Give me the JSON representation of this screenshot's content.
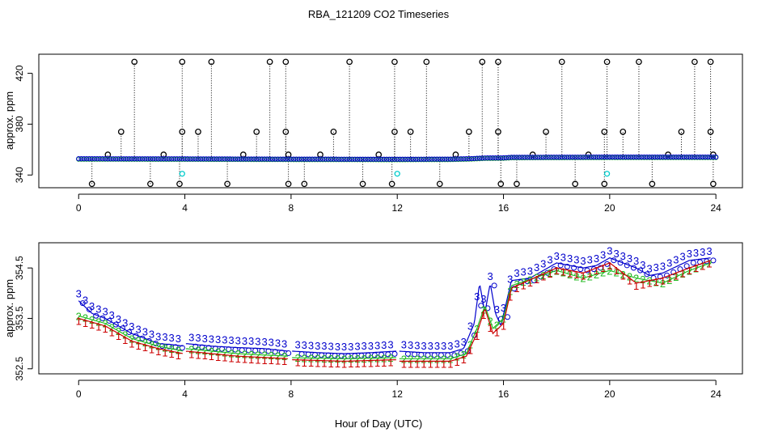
{
  "figure": {
    "title": "RBA_121209  CO2 Timeseries",
    "xlabel": "Hour of Day (UTC)"
  },
  "colors": {
    "open": "#000000",
    "series1": "#cc0000",
    "series2": "#22bb22",
    "series3": "#0000cc",
    "flag": "#00cccc"
  },
  "chart_data": [
    {
      "type": "scatter",
      "panel": "top",
      "title": "RBA_121209  CO2 Timeseries",
      "xlabel": "",
      "ylabel": "approx. ppm",
      "xlim": [
        -1.5,
        25.0
      ],
      "ylim": [
        330,
        435
      ],
      "xticks": [
        0,
        4,
        8,
        12,
        16,
        20,
        24
      ],
      "xtick_labels": [
        "0",
        "4",
        "8",
        "12",
        "16",
        "20",
        "24"
      ],
      "yticks": [
        340,
        380,
        420
      ],
      "ytick_labels": [
        "340",
        "380",
        "420"
      ],
      "baseline": [
        [
          0,
          353.3
        ],
        [
          4,
          353.2
        ],
        [
          8,
          353.0
        ],
        [
          12,
          352.9
        ],
        [
          14,
          353.0
        ],
        [
          14.8,
          353.4
        ],
        [
          15.3,
          353.9
        ],
        [
          16.0,
          354.0
        ],
        [
          16.3,
          354.4
        ],
        [
          20,
          354.6
        ],
        [
          24,
          354.6
        ]
      ],
      "spikes": [
        {
          "x": 0.5,
          "y": 333
        },
        {
          "x": 1.1,
          "y": 356
        },
        {
          "x": 1.6,
          "y": 374
        },
        {
          "x": 2.1,
          "y": 429
        },
        {
          "x": 2.7,
          "y": 333
        },
        {
          "x": 3.2,
          "y": 356
        },
        {
          "x": 3.8,
          "y": 333
        },
        {
          "x": 3.9,
          "y": 374
        },
        {
          "x": 3.9,
          "y": 429
        },
        {
          "x": 4.5,
          "y": 374
        },
        {
          "x": 5.0,
          "y": 429
        },
        {
          "x": 5.6,
          "y": 333
        },
        {
          "x": 6.2,
          "y": 356
        },
        {
          "x": 6.7,
          "y": 374
        },
        {
          "x": 7.2,
          "y": 429
        },
        {
          "x": 7.8,
          "y": 429
        },
        {
          "x": 7.8,
          "y": 374
        },
        {
          "x": 7.9,
          "y": 333
        },
        {
          "x": 7.9,
          "y": 356
        },
        {
          "x": 8.5,
          "y": 333
        },
        {
          "x": 9.1,
          "y": 356
        },
        {
          "x": 9.6,
          "y": 374
        },
        {
          "x": 10.2,
          "y": 429
        },
        {
          "x": 10.7,
          "y": 333
        },
        {
          "x": 11.3,
          "y": 356
        },
        {
          "x": 11.8,
          "y": 333
        },
        {
          "x": 11.9,
          "y": 374
        },
        {
          "x": 11.9,
          "y": 429
        },
        {
          "x": 12.5,
          "y": 374
        },
        {
          "x": 13.1,
          "y": 429
        },
        {
          "x": 13.6,
          "y": 333
        },
        {
          "x": 14.2,
          "y": 356
        },
        {
          "x": 14.7,
          "y": 374
        },
        {
          "x": 15.2,
          "y": 429
        },
        {
          "x": 15.8,
          "y": 429
        },
        {
          "x": 15.8,
          "y": 374
        },
        {
          "x": 15.9,
          "y": 333
        },
        {
          "x": 16.5,
          "y": 333
        },
        {
          "x": 17.1,
          "y": 356
        },
        {
          "x": 17.6,
          "y": 374
        },
        {
          "x": 18.2,
          "y": 429
        },
        {
          "x": 18.7,
          "y": 333
        },
        {
          "x": 19.2,
          "y": 356
        },
        {
          "x": 19.8,
          "y": 333
        },
        {
          "x": 19.8,
          "y": 374
        },
        {
          "x": 19.9,
          "y": 429
        },
        {
          "x": 20.5,
          "y": 374
        },
        {
          "x": 21.1,
          "y": 429
        },
        {
          "x": 21.6,
          "y": 333
        },
        {
          "x": 22.2,
          "y": 356
        },
        {
          "x": 22.7,
          "y": 374
        },
        {
          "x": 23.2,
          "y": 429
        },
        {
          "x": 23.8,
          "y": 429
        },
        {
          "x": 23.8,
          "y": 374
        },
        {
          "x": 23.9,
          "y": 333
        },
        {
          "x": 23.9,
          "y": 356
        }
      ],
      "flags": [
        {
          "x": 3.9,
          "y": 341
        },
        {
          "x": 12.0,
          "y": 341
        },
        {
          "x": 19.9,
          "y": 341
        }
      ]
    },
    {
      "type": "line",
      "panel": "bottom",
      "xlabel": "Hour of Day (UTC)",
      "ylabel": "approx. ppm",
      "xlim": [
        -1.5,
        25.0
      ],
      "ylim": [
        352.4,
        355.0
      ],
      "xticks": [
        0,
        4,
        8,
        12,
        16,
        20,
        24
      ],
      "xtick_labels": [
        "0",
        "4",
        "8",
        "12",
        "16",
        "20",
        "24"
      ],
      "yticks": [
        352.5,
        353.5,
        354.5
      ],
      "ytick_labels": [
        "352.5",
        "353.5",
        "354.5"
      ],
      "series": [
        {
          "name": "3",
          "points": [
            [
              0,
              353.85
            ],
            [
              0.5,
              353.6
            ],
            [
              1,
              353.5
            ],
            [
              1.5,
              353.35
            ],
            [
              2,
              353.2
            ],
            [
              2.5,
              353.1
            ],
            [
              3,
              353.0
            ],
            [
              3.5,
              352.98
            ],
            [
              3.95,
              352.95
            ],
            [
              4.05,
              353.0
            ],
            [
              5,
              352.95
            ],
            [
              6,
              352.92
            ],
            [
              7,
              352.9
            ],
            [
              7.9,
              352.85
            ],
            [
              8.05,
              352.85
            ],
            [
              9,
              352.82
            ],
            [
              10,
              352.8
            ],
            [
              11,
              352.82
            ],
            [
              11.95,
              352.85
            ],
            [
              12.05,
              352.85
            ],
            [
              13,
              352.82
            ],
            [
              14,
              352.82
            ],
            [
              14.5,
              352.9
            ],
            [
              14.9,
              353.4
            ],
            [
              15.1,
              354.2
            ],
            [
              15.3,
              353.6
            ],
            [
              15.5,
              354.2
            ],
            [
              15.7,
              353.6
            ],
            [
              15.9,
              353.35
            ],
            [
              16.1,
              353.8
            ],
            [
              16.3,
              354.25
            ],
            [
              17,
              354.3
            ],
            [
              18,
              354.6
            ],
            [
              18.5,
              354.55
            ],
            [
              19,
              354.5
            ],
            [
              19.5,
              354.55
            ],
            [
              20,
              354.7
            ],
            [
              20.5,
              354.6
            ],
            [
              21,
              354.5
            ],
            [
              21.5,
              354.35
            ],
            [
              22,
              354.4
            ],
            [
              23,
              354.65
            ],
            [
              23.8,
              354.7
            ]
          ]
        },
        {
          "name": "2",
          "points": [
            [
              0,
              353.55
            ],
            [
              1,
              353.4
            ],
            [
              2,
              353.1
            ],
            [
              3,
              352.95
            ],
            [
              3.95,
              352.85
            ],
            [
              4.05,
              352.9
            ],
            [
              6,
              352.8
            ],
            [
              7.9,
              352.75
            ],
            [
              8.05,
              352.72
            ],
            [
              10,
              352.7
            ],
            [
              11.95,
              352.72
            ],
            [
              12.05,
              352.7
            ],
            [
              14,
              352.7
            ],
            [
              14.6,
              352.8
            ],
            [
              15,
              353.3
            ],
            [
              15.3,
              353.75
            ],
            [
              15.6,
              353.3
            ],
            [
              16,
              353.5
            ],
            [
              16.3,
              354.15
            ],
            [
              18,
              354.45
            ],
            [
              19,
              354.3
            ],
            [
              20,
              354.45
            ],
            [
              21,
              354.3
            ],
            [
              22,
              354.2
            ],
            [
              23,
              354.45
            ],
            [
              23.8,
              354.6
            ]
          ]
        },
        {
          "name": "1",
          "points": [
            [
              0,
              353.5
            ],
            [
              1,
              353.35
            ],
            [
              2,
              353.05
            ],
            [
              3,
              352.9
            ],
            [
              3.95,
              352.8
            ],
            [
              4.05,
              352.85
            ],
            [
              6,
              352.75
            ],
            [
              7.9,
              352.7
            ],
            [
              8.05,
              352.68
            ],
            [
              10,
              352.65
            ],
            [
              11.95,
              352.68
            ],
            [
              12.05,
              352.65
            ],
            [
              14,
              352.65
            ],
            [
              14.6,
              352.75
            ],
            [
              15,
              353.2
            ],
            [
              15.3,
              353.7
            ],
            [
              15.6,
              353.2
            ],
            [
              16,
              353.4
            ],
            [
              16.3,
              354.1
            ],
            [
              18,
              354.5
            ],
            [
              19,
              354.4
            ],
            [
              20,
              354.6
            ],
            [
              21,
              354.2
            ],
            [
              22,
              354.3
            ],
            [
              23,
              354.5
            ],
            [
              23.8,
              354.65
            ]
          ]
        }
      ]
    }
  ]
}
